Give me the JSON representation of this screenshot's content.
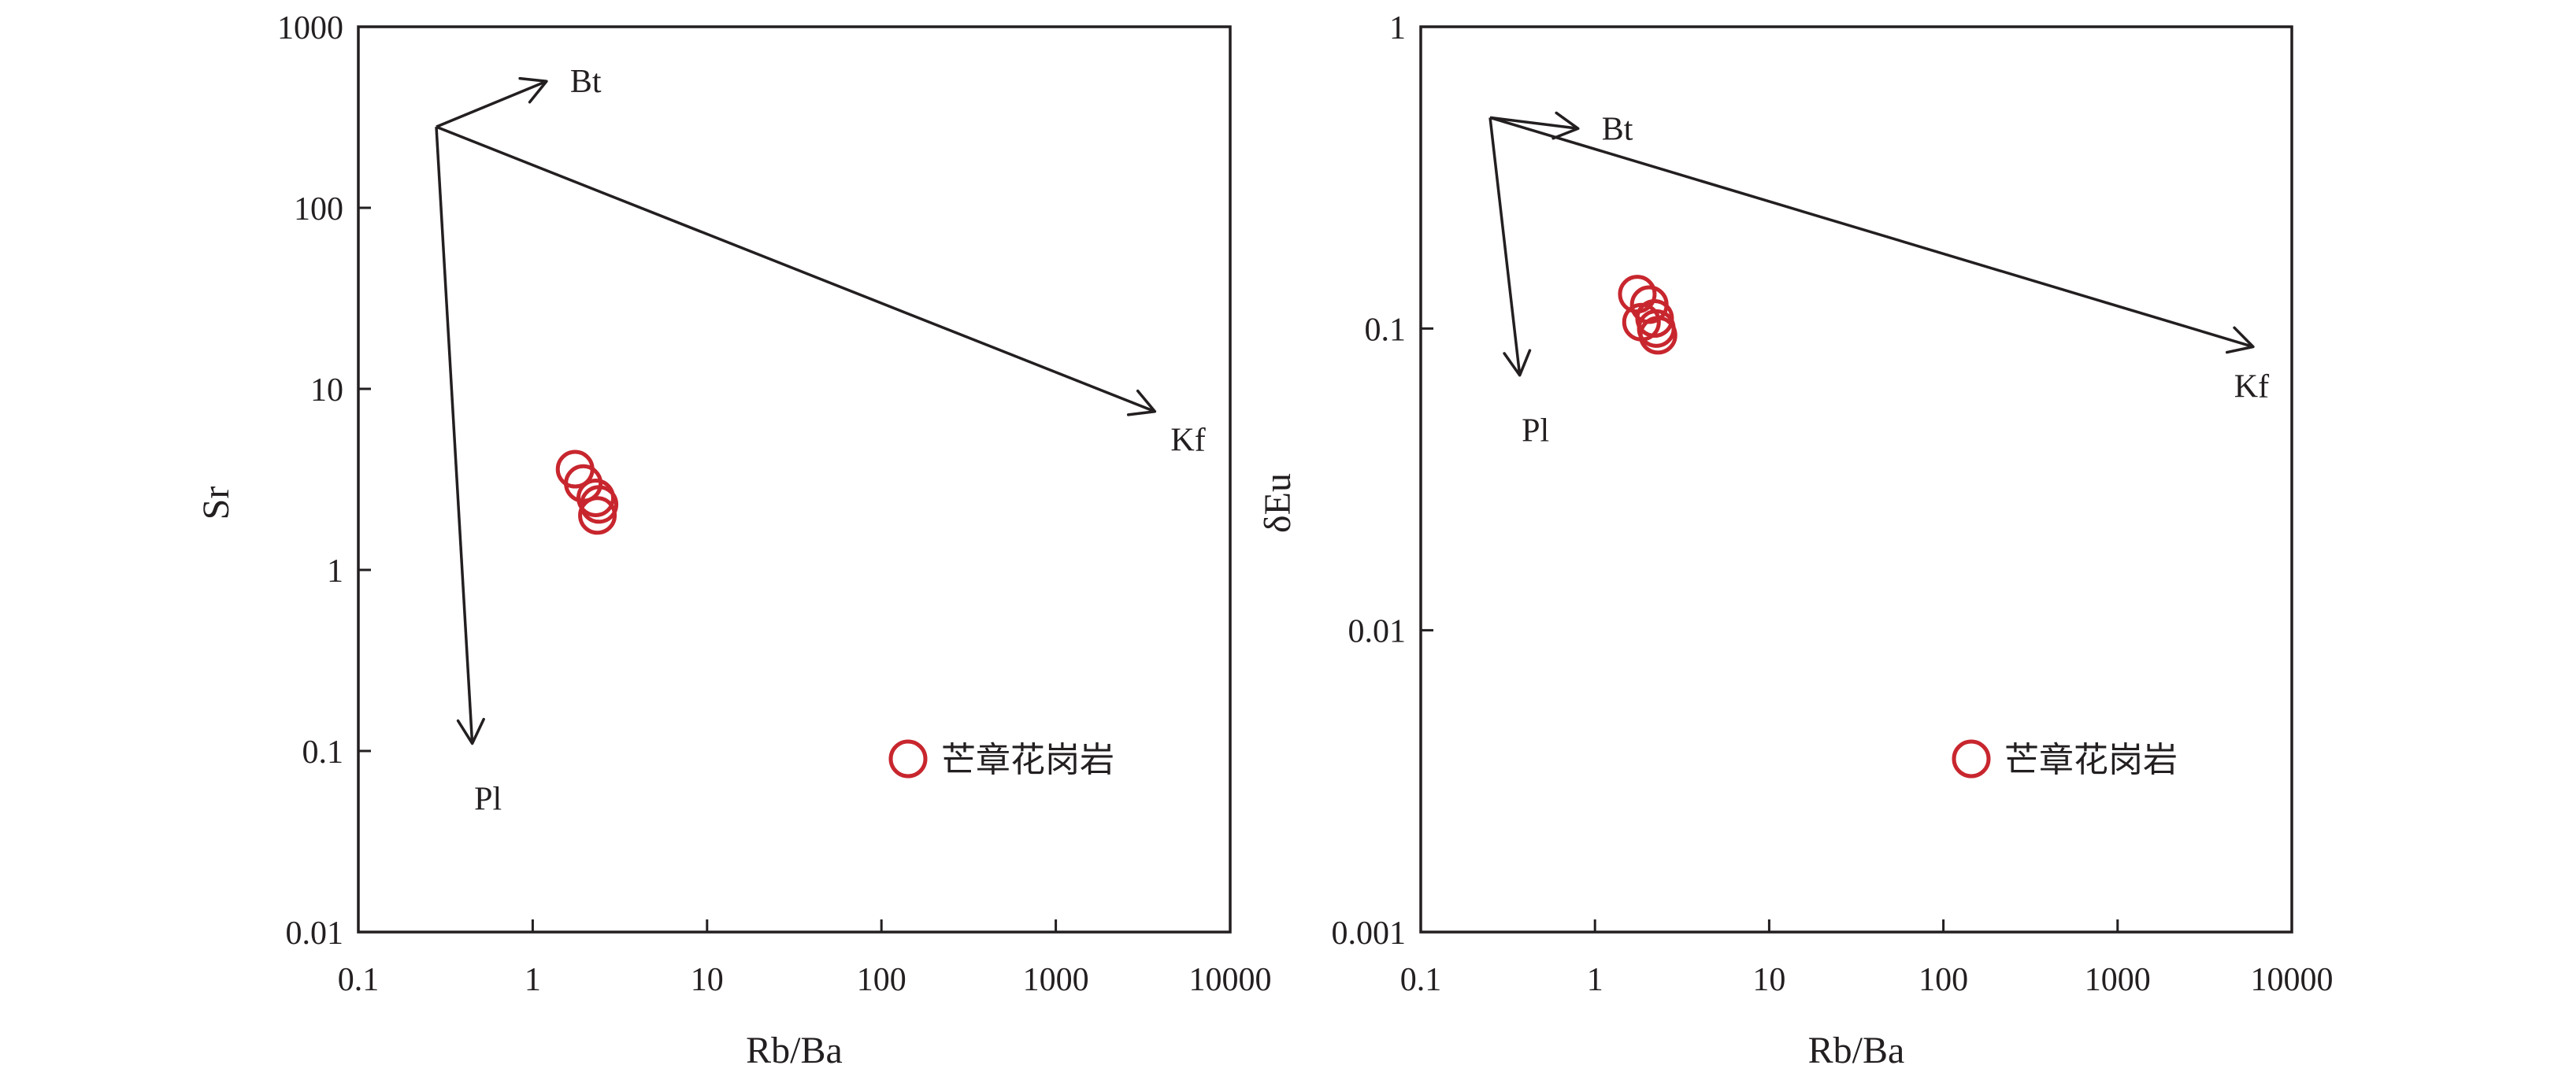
{
  "chart_data": [
    {
      "type": "scatter",
      "title": "",
      "xlabel": "Rb/Ba",
      "ylabel": "Sr",
      "xscale": "log",
      "yscale": "log",
      "xlim": [
        0.1,
        10000
      ],
      "ylim": [
        0.01,
        1000
      ],
      "xticks": [
        "0.1",
        "1",
        "10",
        "100",
        "1000",
        "10000"
      ],
      "yticks": [
        "0.01",
        "0.1",
        "1",
        "10",
        "100",
        "1000"
      ],
      "series": [
        {
          "name": "芒章花岗岩",
          "color": "#c8262e",
          "marker": "open-circle",
          "points": [
            {
              "x": 1.75,
              "y": 3.6
            },
            {
              "x": 1.95,
              "y": 3.0
            },
            {
              "x": 2.3,
              "y": 2.5
            },
            {
              "x": 2.4,
              "y": 2.3
            },
            {
              "x": 2.35,
              "y": 2.0
            }
          ]
        }
      ],
      "vectors": [
        {
          "label": "Bt",
          "from": {
            "x": 0.28,
            "y": 280
          },
          "to": {
            "x": 1.2,
            "y": 500
          }
        },
        {
          "label": "Kf",
          "from": {
            "x": 0.28,
            "y": 280
          },
          "to": {
            "x": 3700,
            "y": 7.5
          }
        },
        {
          "label": "Pl",
          "from": {
            "x": 0.28,
            "y": 280
          },
          "to": {
            "x": 0.45,
            "y": 0.11
          }
        }
      ],
      "legend_position": "bottom-right"
    },
    {
      "type": "scatter",
      "title": "",
      "xlabel": "Rb/Ba",
      "ylabel": "δEu",
      "xscale": "log",
      "yscale": "log",
      "xlim": [
        0.1,
        10000
      ],
      "ylim": [
        0.001,
        1
      ],
      "xticks": [
        "0.1",
        "1",
        "10",
        "100",
        "1000",
        "10000"
      ],
      "yticks": [
        "0.001",
        "0.01",
        "0.1",
        "1"
      ],
      "series": [
        {
          "name": "芒章花岗岩",
          "color": "#c8262e",
          "marker": "open-circle",
          "points": [
            {
              "x": 1.75,
              "y": 0.13
            },
            {
              "x": 2.05,
              "y": 0.12
            },
            {
              "x": 1.85,
              "y": 0.105
            },
            {
              "x": 2.25,
              "y": 0.1
            },
            {
              "x": 2.3,
              "y": 0.095
            },
            {
              "x": 2.2,
              "y": 0.108
            }
          ]
        }
      ],
      "vectors": [
        {
          "label": "Bt",
          "from": {
            "x": 0.25,
            "y": 0.5
          },
          "to": {
            "x": 0.8,
            "y": 0.46
          }
        },
        {
          "label": "Kf",
          "from": {
            "x": 0.25,
            "y": 0.5
          },
          "to": {
            "x": 6000,
            "y": 0.087
          }
        },
        {
          "label": "Pl",
          "from": {
            "x": 0.25,
            "y": 0.5
          },
          "to": {
            "x": 0.37,
            "y": 0.07
          }
        }
      ],
      "legend_position": "bottom-right"
    }
  ]
}
